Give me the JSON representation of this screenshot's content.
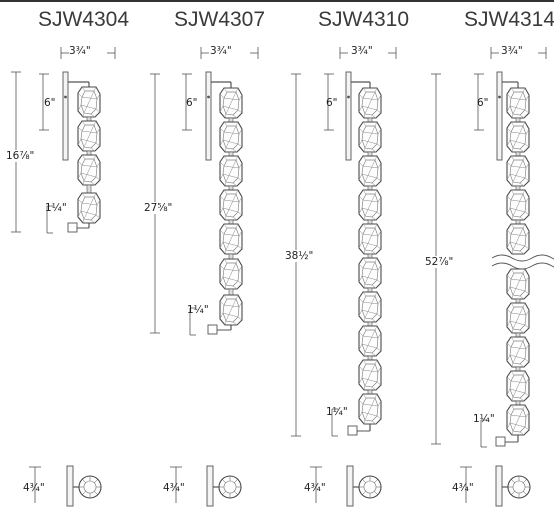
{
  "models": [
    {
      "name": "SJW4304",
      "width": "3¾\"",
      "top": "6\"",
      "overall": "16⅞\"",
      "bottom": "1¼\"",
      "depth": "4¾\""
    },
    {
      "name": "SJW4307",
      "width": "3¾\"",
      "top": "6\"",
      "overall": "27⅝\"",
      "bottom": "1¼\"",
      "depth": "4¾\""
    },
    {
      "name": "SJW4310",
      "width": "3¾\"",
      "top": "6\"",
      "overall": "38½\"",
      "bottom": "1¼\"",
      "depth": "4¾\""
    },
    {
      "name": "SJW4314",
      "width": "3¾\"",
      "top": "6\"",
      "overall": "52⅞\"",
      "bottom": "1¼\"",
      "depth": "4¾\""
    }
  ],
  "colors": {
    "line": "#555555",
    "text": "#222222"
  }
}
